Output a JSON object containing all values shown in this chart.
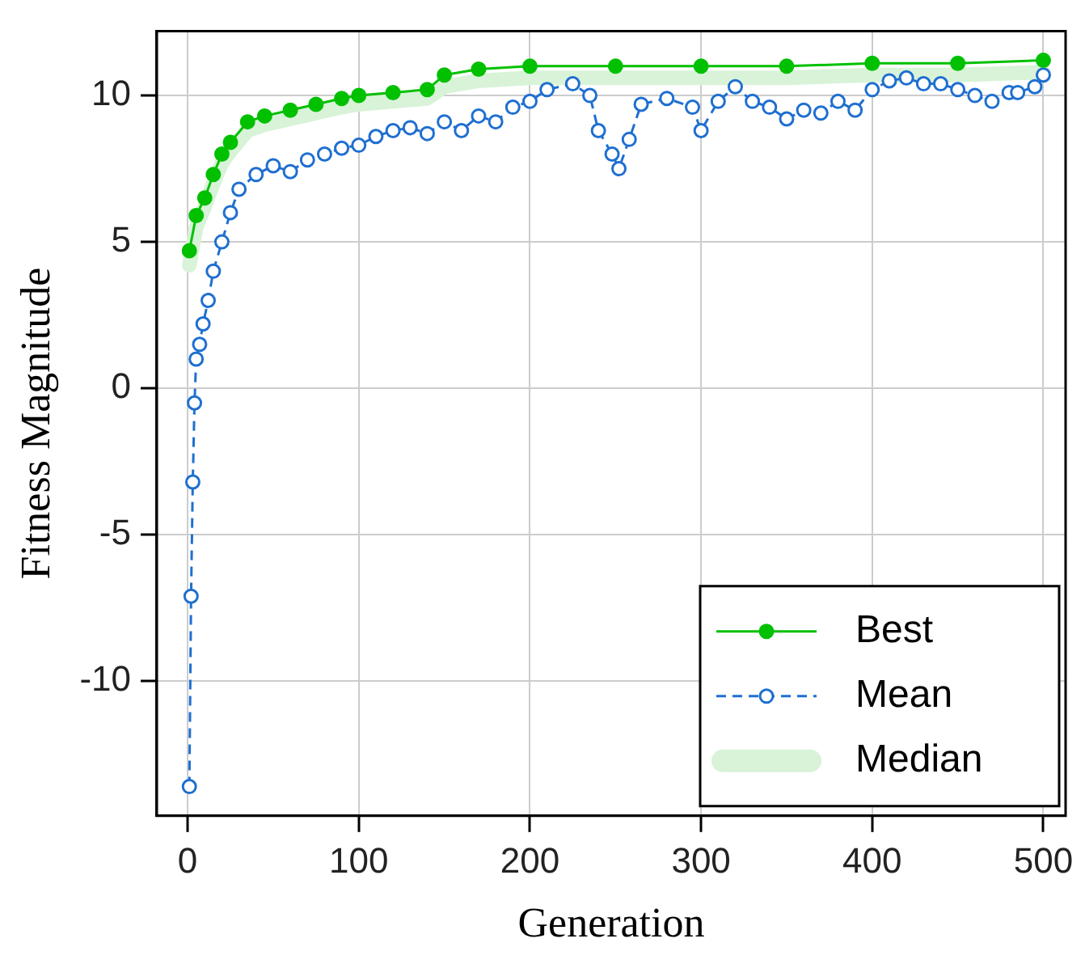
{
  "chart_data": {
    "type": "line",
    "xlabel": "Generation",
    "ylabel": "Fitness Magnitude",
    "xlim": [
      -18,
      513
    ],
    "ylim": [
      -14.6,
      12.2
    ],
    "xticks": [
      0,
      100,
      200,
      300,
      400,
      500
    ],
    "yticks": [
      -10,
      -5,
      0,
      5,
      10
    ],
    "grid": true,
    "legend": "bottom right",
    "series": [
      {
        "name": "Best",
        "color": "#00c000",
        "marker": "circle",
        "line_style": "solid",
        "x": [
          1,
          5,
          10,
          15,
          20,
          25,
          35,
          45,
          60,
          75,
          90,
          100,
          120,
          140,
          150,
          170,
          200,
          250,
          300,
          350,
          400,
          450,
          500
        ],
        "values": [
          4.7,
          5.9,
          6.5,
          7.3,
          8.0,
          8.4,
          9.1,
          9.3,
          9.5,
          9.7,
          9.9,
          10.0,
          10.1,
          10.2,
          10.7,
          10.9,
          11.0,
          11.0,
          11.0,
          11.0,
          11.1,
          11.1,
          11.2
        ]
      },
      {
        "name": "Mean",
        "color": "#1f6fd0",
        "marker": "circle",
        "line_style": "dashed",
        "x": [
          1,
          2,
          3,
          4,
          5,
          7,
          9,
          12,
          15,
          20,
          25,
          30,
          40,
          50,
          60,
          70,
          80,
          90,
          100,
          110,
          120,
          130,
          140,
          150,
          160,
          170,
          180,
          190,
          200,
          210,
          225,
          235,
          240,
          248,
          252,
          258,
          265,
          280,
          295,
          300,
          310,
          320,
          330,
          340,
          350,
          360,
          370,
          380,
          390,
          400,
          410,
          420,
          430,
          440,
          450,
          460,
          470,
          480,
          485,
          495,
          500
        ],
        "values": [
          -13.6,
          -7.1,
          -3.2,
          -0.5,
          1.0,
          1.5,
          2.2,
          3.0,
          4.0,
          5.0,
          6.0,
          6.8,
          7.3,
          7.6,
          7.4,
          7.8,
          8.0,
          8.2,
          8.3,
          8.6,
          8.8,
          8.9,
          8.7,
          9.1,
          8.8,
          9.3,
          9.1,
          9.6,
          9.8,
          10.2,
          10.4,
          10.0,
          8.8,
          8.0,
          7.5,
          8.5,
          9.7,
          9.9,
          9.6,
          8.8,
          9.8,
          10.3,
          9.8,
          9.6,
          9.2,
          9.5,
          9.4,
          9.8,
          9.5,
          10.2,
          10.5,
          10.6,
          10.4,
          10.4,
          10.2,
          10.0,
          9.8,
          10.1,
          10.1,
          10.3,
          10.7
        ]
      },
      {
        "name": "Median",
        "color": "#d8f3d8",
        "x": [
          1,
          5,
          10,
          15,
          20,
          25,
          35,
          45,
          60,
          75,
          90,
          100,
          120,
          140,
          150,
          170,
          200,
          250,
          300,
          350,
          400,
          450,
          500
        ],
        "values": [
          4.2,
          5.5,
          6.2,
          7.0,
          7.7,
          8.1,
          8.8,
          9.0,
          9.2,
          9.4,
          9.6,
          9.7,
          9.8,
          9.9,
          10.3,
          10.5,
          10.6,
          10.6,
          10.6,
          10.6,
          10.7,
          10.7,
          10.8
        ]
      }
    ]
  }
}
